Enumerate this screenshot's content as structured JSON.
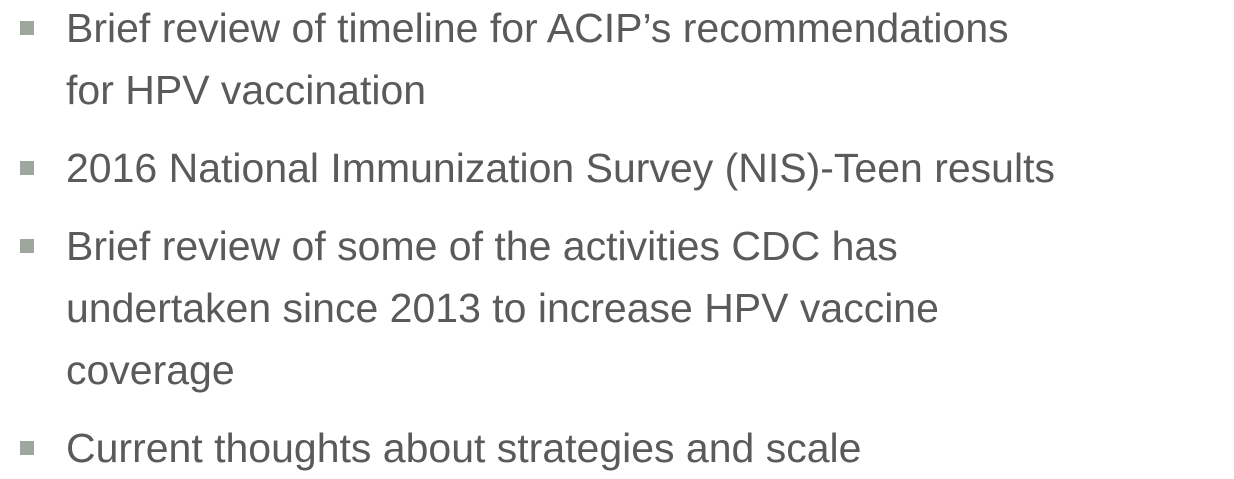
{
  "bullets": [
    {
      "lines": [
        "Brief review of timeline for ACIP’s recommendations",
        "for HPV vaccination"
      ]
    },
    {
      "lines": [
        "2016 National Immunization Survey (NIS)-Teen results"
      ]
    },
    {
      "lines": [
        "Brief review of some of the activities CDC has",
        "undertaken since 2013 to increase HPV vaccine",
        "coverage"
      ]
    },
    {
      "lines": [
        "Current thoughts about strategies and scale"
      ]
    }
  ]
}
